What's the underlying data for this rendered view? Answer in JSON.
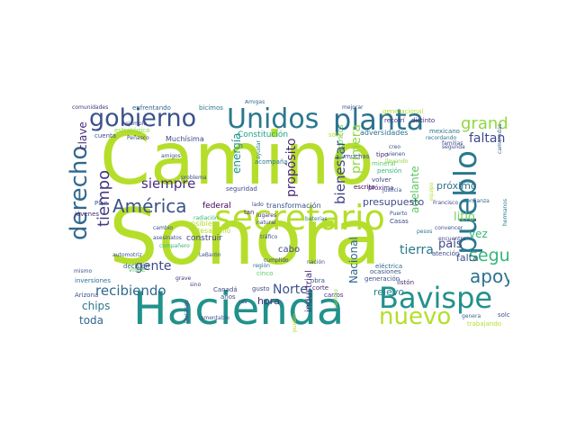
{
  "words": [
    {
      "text": "Camino",
      "color": "#b5de2b"
    },
    {
      "text": "Sonora",
      "color": "#b5de2b"
    },
    {
      "text": "Hacienda",
      "color": "#21918c"
    },
    {
      "text": "secretario",
      "color": "#b5de2b"
    },
    {
      "text": "Unidos",
      "color": "#2a788e"
    },
    {
      "text": "planta",
      "color": "#2c728e"
    },
    {
      "text": "gobierno",
      "color": "#3b528b"
    },
    {
      "text": "Bavispe",
      "color": "#21918c"
    },
    {
      "text": "pueblo",
      "color": "#2a788e"
    },
    {
      "text": "derecho",
      "color": "#31688e"
    },
    {
      "text": "nuevo",
      "color": "#b5de2b"
    },
    {
      "text": "apoyo",
      "color": "#2c728e"
    },
    {
      "text": "América",
      "color": "#3b528b"
    },
    {
      "text": "seguir",
      "color": "#35b779"
    },
    {
      "text": "grande",
      "color": "#90d743"
    },
    {
      "text": "tiempo",
      "color": "#443983"
    },
    {
      "text": "siempre",
      "color": "#472d7b"
    },
    {
      "text": "recibiendo",
      "color": "#31688e"
    },
    {
      "text": "gente",
      "color": "#3e4989"
    },
    {
      "text": "Norte",
      "color": "#3b528b"
    },
    {
      "text": "país",
      "color": "#3e4989"
    },
    {
      "text": "tierra",
      "color": "#2a788e"
    },
    {
      "text": "bienestar",
      "color": "#414487"
    },
    {
      "text": "faltan",
      "color": "#3e4989"
    },
    {
      "text": "propósito",
      "color": "#482878"
    },
    {
      "text": "primera",
      "color": "#90d743"
    },
    {
      "text": "litio",
      "color": "#7ad151"
    },
    {
      "text": "clave",
      "color": "#472d7b"
    },
    {
      "text": "chips",
      "color": "#2a788e"
    },
    {
      "text": "toda",
      "color": "#31688e"
    },
    {
      "text": "energía",
      "color": "#21918c"
    },
    {
      "text": "vez",
      "color": "#35b779"
    },
    {
      "text": "adelante",
      "color": "#5ec962"
    },
    {
      "text": "próximo",
      "color": "#2c728e"
    },
    {
      "text": "falta",
      "color": "#3b528b"
    },
    {
      "text": "hora",
      "color": "#46327e"
    },
    {
      "text": "Nacional",
      "color": "#31688e"
    },
    {
      "text": "presupuesto",
      "color": "#3e4989"
    },
    {
      "text": "relevo",
      "color": "#26828e"
    },
    {
      "text": "cabo",
      "color": "#3e4989"
    },
    {
      "text": "industrial",
      "color": "#482878"
    },
    {
      "text": "federal",
      "color": "#440154"
    },
    {
      "text": "construir",
      "color": "#414487"
    },
    {
      "text": "Constitución",
      "color": "#1f9e89"
    },
    {
      "text": "transformación",
      "color": "#3b528b"
    },
    {
      "text": "Muchísima",
      "color": "#3e4989"
    },
    {
      "text": "adversidades",
      "color": "#2c728e"
    },
    {
      "text": "eléctricos",
      "color": "#5ec962"
    },
    {
      "text": "desarrollo",
      "color": "#b5de2b"
    },
    {
      "text": "sensible",
      "color": "#b5de2b"
    },
    {
      "text": "Plan",
      "color": "#3b528b"
    },
    {
      "text": "jóvenes",
      "color": "#482878"
    },
    {
      "text": "inversiones",
      "color": "#2c728e"
    },
    {
      "text": "Arizona",
      "color": "#3b528b"
    },
    {
      "text": "decisión",
      "color": "#31688e"
    },
    {
      "text": "visité",
      "color": "#5ec962"
    },
    {
      "text": "atención",
      "color": "#3e4989"
    },
    {
      "text": "generación",
      "color": "#3b528b"
    },
    {
      "text": "eléctrica",
      "color": "#31688e"
    },
    {
      "text": "Canadá",
      "color": "#3e4989"
    },
    {
      "text": "años",
      "color": "#3b528b"
    },
    {
      "text": "gusto",
      "color": "#3e4989"
    },
    {
      "text": "corte",
      "color": "#482878"
    },
    {
      "text": "carros",
      "color": "#46327e"
    },
    {
      "text": "ocasiones",
      "color": "#3b528b"
    },
    {
      "text": "mineral",
      "color": "#5ec962"
    },
    {
      "text": "pensión",
      "color": "#35b779"
    },
    {
      "text": "volver",
      "color": "#3e4989"
    },
    {
      "text": "escrito",
      "color": "#440154"
    },
    {
      "text": "tipo",
      "color": "#482878"
    },
    {
      "text": "muchas",
      "color": "#3b528b"
    },
    {
      "text": "mexicano",
      "color": "#2c728e"
    },
    {
      "text": "distinto",
      "color": "#472d7b"
    },
    {
      "text": "recorrí",
      "color": "#46327e"
    },
    {
      "text": "generacional",
      "color": "#b5de2b"
    },
    {
      "text": "solar",
      "color": "#b5de2b"
    },
    {
      "text": "enfrentando",
      "color": "#31688e"
    },
    {
      "text": "bicimos",
      "color": "#2a788e"
    },
    {
      "text": "comunidades",
      "color": "#46327e"
    },
    {
      "text": "cuenta",
      "color": "#3b528b"
    },
    {
      "text": "estratégico",
      "color": "#90d743"
    },
    {
      "text": "Peñasco",
      "color": "#3e4989"
    },
    {
      "text": "acompaña",
      "color": "#2a788e"
    },
    {
      "text": "seguridad",
      "color": "#3e4989"
    },
    {
      "text": "cinco",
      "color": "#5ec962"
    },
    {
      "text": "obra",
      "color": "#3b528b"
    },
    {
      "text": "próxima",
      "color": "#472d7b"
    },
    {
      "text": "confianza",
      "color": "#31688e"
    },
    {
      "text": "Francisco",
      "color": "#3e4989"
    },
    {
      "text": "Puerto",
      "color": "#3b528b"
    },
    {
      "text": "Casas",
      "color": "#3e4989"
    },
    {
      "text": "listón",
      "color": "#482878"
    },
    {
      "text": "mismo",
      "color": "#3b528b"
    },
    {
      "text": "grave",
      "color": "#46327e"
    },
    {
      "text": "sino",
      "color": "#3e4989"
    },
    {
      "text": "LeBarón",
      "color": "#3b528b"
    },
    {
      "text": "región",
      "color": "#2c728e"
    },
    {
      "text": "trabajando",
      "color": "#b5de2b"
    },
    {
      "text": "solo",
      "color": "#3b528b"
    },
    {
      "text": "genera",
      "color": "#31688e"
    },
    {
      "text": "camaradas",
      "color": "#3b528b"
    },
    {
      "text": "hermanos",
      "color": "#2a788e"
    },
    {
      "text": "amigos",
      "color": "#3b528b"
    },
    {
      "text": "ejemplo",
      "color": "#3e4989"
    },
    {
      "text": "Amigas",
      "color": "#31688e"
    },
    {
      "text": "mejorar",
      "color": "#3b528b"
    },
    {
      "text": "problema",
      "color": "#3e4989"
    },
    {
      "text": "radiación",
      "color": "#35b779"
    },
    {
      "text": "automotriz",
      "color": "#3b528b"
    },
    {
      "text": "cumplido",
      "color": "#3e4989"
    },
    {
      "text": "baterías",
      "color": "#2c728e"
    },
    {
      "text": "nación",
      "color": "#3b528b"
    },
    {
      "text": "lugares",
      "color": "#472d7b"
    },
    {
      "text": "natural",
      "color": "#3e4989"
    },
    {
      "text": "manera",
      "color": "#3b528b"
    },
    {
      "text": "recordando",
      "color": "#2a788e"
    },
    {
      "text": "familias",
      "color": "#3e4989"
    },
    {
      "text": "creo",
      "color": "#3b528b"
    },
    {
      "text": "vienen",
      "color": "#3e4989"
    },
    {
      "text": "llevando",
      "color": "#90d743"
    },
    {
      "text": "justicia",
      "color": "#3b528b"
    },
    {
      "text": "segunda",
      "color": "#3e4989"
    },
    {
      "text": "convencer",
      "color": "#3b528b"
    },
    {
      "text": "encuentra",
      "color": "#3e4989"
    },
    {
      "text": "pesos",
      "color": "#2c728e"
    },
    {
      "text": "equipo",
      "color": "#b5de2b"
    },
    {
      "text": "lamentable",
      "color": "#3b528b"
    },
    {
      "text": "Durango",
      "color": "#3e4989"
    },
    {
      "text": "cambio",
      "color": "#3b528b"
    },
    {
      "text": "tan",
      "color": "#472d7b"
    },
    {
      "text": "lado",
      "color": "#3e4989"
    },
    {
      "text": "tráfico",
      "color": "#3b528b"
    },
    {
      "text": "ras",
      "color": "#3e4989"
    },
    {
      "text": "asesinatos",
      "color": "#3b528b"
    },
    {
      "text": "compañero",
      "color": "#35b779"
    },
    {
      "text": "ayudar",
      "color": "#2a788e"
    },
    {
      "text": "camino",
      "color": "#90d743"
    },
    {
      "text": "pueblo",
      "color": "#b5de2b"
    }
  ]
}
